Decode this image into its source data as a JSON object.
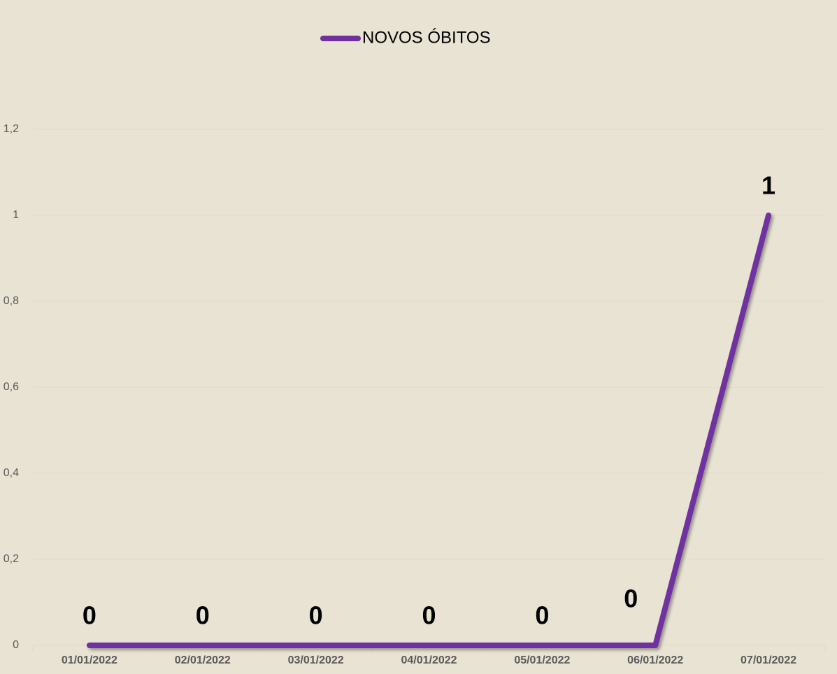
{
  "chart_data": {
    "type": "line",
    "categories": [
      "01/01/2022",
      "02/01/2022",
      "03/01/2022",
      "04/01/2022",
      "05/01/2022",
      "06/01/2022",
      "07/01/2022"
    ],
    "series": [
      {
        "name": "NOVOS ÓBITOS",
        "color": "#7030a0",
        "values": [
          0,
          0,
          0,
          0,
          0,
          0,
          1
        ]
      }
    ],
    "ylim": [
      0,
      1.2
    ],
    "yticks": [
      0,
      {
        "value": 0.2,
        "label": "0,2"
      },
      {
        "value": 0.4,
        "label": "0,4"
      },
      {
        "value": 0.6,
        "label": "0,6"
      },
      {
        "value": 0.8,
        "label": "0,8"
      },
      1,
      {
        "value": 1.2,
        "label": "1,2"
      }
    ],
    "grid": true,
    "legend": "top"
  }
}
